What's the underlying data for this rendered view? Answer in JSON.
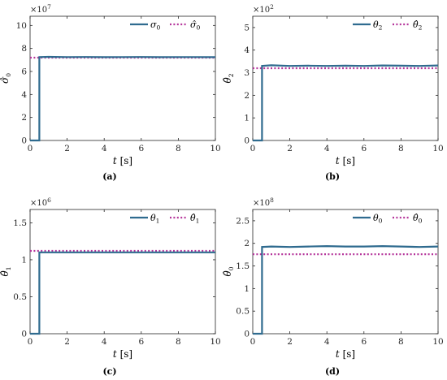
{
  "chart_data": [
    {
      "type": "line",
      "caption": "(a)",
      "exponent": "7",
      "ylabel": {
        "base": "σ̂",
        "sub": "0"
      },
      "xlabel": {
        "var": "t",
        "unit": "[s]"
      },
      "xlim": [
        0,
        10
      ],
      "ylim": [
        0,
        10.8
      ],
      "xticks": [
        "0",
        "2",
        "4",
        "6",
        "8",
        "10"
      ],
      "yticks": [
        "0",
        "2",
        "4",
        "6",
        "8",
        "10"
      ],
      "xtick_values": [
        0,
        2,
        4,
        6,
        8,
        10
      ],
      "ytick_values": [
        0,
        2,
        4,
        6,
        8,
        10
      ],
      "legend_position": "top-right",
      "series": [
        {
          "name": "σ",
          "name_sub": "0",
          "style": "solid",
          "color": "#2f6b8f",
          "x": [
            0,
            0.5,
            0.5,
            1,
            2,
            3,
            4,
            5,
            6,
            7,
            8,
            9,
            10
          ],
          "y": [
            0,
            0,
            7.25,
            7.27,
            7.25,
            7.26,
            7.24,
            7.25,
            7.26,
            7.24,
            7.25,
            7.25,
            7.24
          ]
        },
        {
          "name": "σ̂",
          "name_sub": "0",
          "style": "dotted",
          "color": "#b5359b",
          "x": [
            0,
            10
          ],
          "y": [
            7.2,
            7.2
          ]
        }
      ]
    },
    {
      "type": "line",
      "caption": "(b)",
      "exponent": "2",
      "ylabel": {
        "base": "θ̂",
        "sub": "2"
      },
      "xlabel": {
        "var": "t",
        "unit": "[s]"
      },
      "xlim": [
        0,
        10
      ],
      "ylim": [
        0,
        5.5
      ],
      "xticks": [
        "0",
        "2",
        "4",
        "6",
        "8",
        "10"
      ],
      "yticks": [
        "0",
        "1",
        "2",
        "3",
        "4",
        "5"
      ],
      "xtick_values": [
        0,
        2,
        4,
        6,
        8,
        10
      ],
      "ytick_values": [
        0,
        1,
        2,
        3,
        4,
        5
      ],
      "legend_position": "top-right",
      "series": [
        {
          "name": "θ",
          "name_sub": "2",
          "style": "solid",
          "color": "#2f6b8f",
          "x": [
            0,
            0.5,
            0.5,
            1,
            2,
            3,
            4,
            5,
            6,
            7,
            8,
            9,
            10
          ],
          "y": [
            0,
            0,
            3.3,
            3.33,
            3.3,
            3.31,
            3.3,
            3.31,
            3.3,
            3.32,
            3.31,
            3.3,
            3.32
          ]
        },
        {
          "name": "θ̂",
          "name_sub": "2",
          "style": "dotted",
          "color": "#b5359b",
          "x": [
            0,
            10
          ],
          "y": [
            3.2,
            3.2
          ]
        }
      ]
    },
    {
      "type": "line",
      "caption": "(c)",
      "exponent": "6",
      "ylabel": {
        "base": "θ̂",
        "sub": "1"
      },
      "xlabel": {
        "var": "t",
        "unit": "[s]"
      },
      "xlim": [
        0,
        10
      ],
      "ylim": [
        0,
        1.68
      ],
      "xticks": [
        "0",
        "2",
        "4",
        "6",
        "8",
        "10"
      ],
      "yticks": [
        "0",
        "0.5",
        "1",
        "1.5"
      ],
      "xtick_values": [
        0,
        2,
        4,
        6,
        8,
        10
      ],
      "ytick_values": [
        0,
        0.5,
        1,
        1.5
      ],
      "legend_position": "top-right",
      "series": [
        {
          "name": "θ",
          "name_sub": "1",
          "style": "solid",
          "color": "#2f6b8f",
          "x": [
            0,
            0.5,
            0.5,
            1,
            2,
            3,
            4,
            5,
            6,
            7,
            8,
            9,
            10
          ],
          "y": [
            0,
            0,
            1.1,
            1.1,
            1.1,
            1.1,
            1.1,
            1.1,
            1.1,
            1.1,
            1.1,
            1.1,
            1.1
          ]
        },
        {
          "name": "θ̂",
          "name_sub": "1",
          "style": "dotted",
          "color": "#b5359b",
          "x": [
            0,
            10
          ],
          "y": [
            1.12,
            1.12
          ]
        }
      ]
    },
    {
      "type": "line",
      "caption": "(d)",
      "exponent": "8",
      "ylabel": {
        "base": "θ̂",
        "sub": "0"
      },
      "xlabel": {
        "var": "t",
        "unit": "[s]"
      },
      "xlim": [
        0,
        10
      ],
      "ylim": [
        0,
        2.75
      ],
      "xticks": [
        "0",
        "2",
        "4",
        "6",
        "8",
        "10"
      ],
      "yticks": [
        "0",
        "0.5",
        "1",
        "1.5",
        "2",
        "2.5"
      ],
      "xtick_values": [
        0,
        2,
        4,
        6,
        8,
        10
      ],
      "ytick_values": [
        0,
        0.5,
        1,
        1.5,
        2,
        2.5
      ],
      "legend_position": "top-right",
      "series": [
        {
          "name": "θ",
          "name_sub": "0",
          "style": "solid",
          "color": "#2f6b8f",
          "x": [
            0,
            0.5,
            0.5,
            1,
            2,
            3,
            4,
            5,
            6,
            7,
            8,
            9,
            10
          ],
          "y": [
            0,
            0,
            1.92,
            1.93,
            1.92,
            1.93,
            1.94,
            1.93,
            1.93,
            1.94,
            1.93,
            1.92,
            1.93
          ]
        },
        {
          "name": "θ̂",
          "name_sub": "0",
          "style": "dotted",
          "color": "#b5359b",
          "x": [
            0,
            10
          ],
          "y": [
            1.76,
            1.76
          ]
        }
      ]
    }
  ]
}
